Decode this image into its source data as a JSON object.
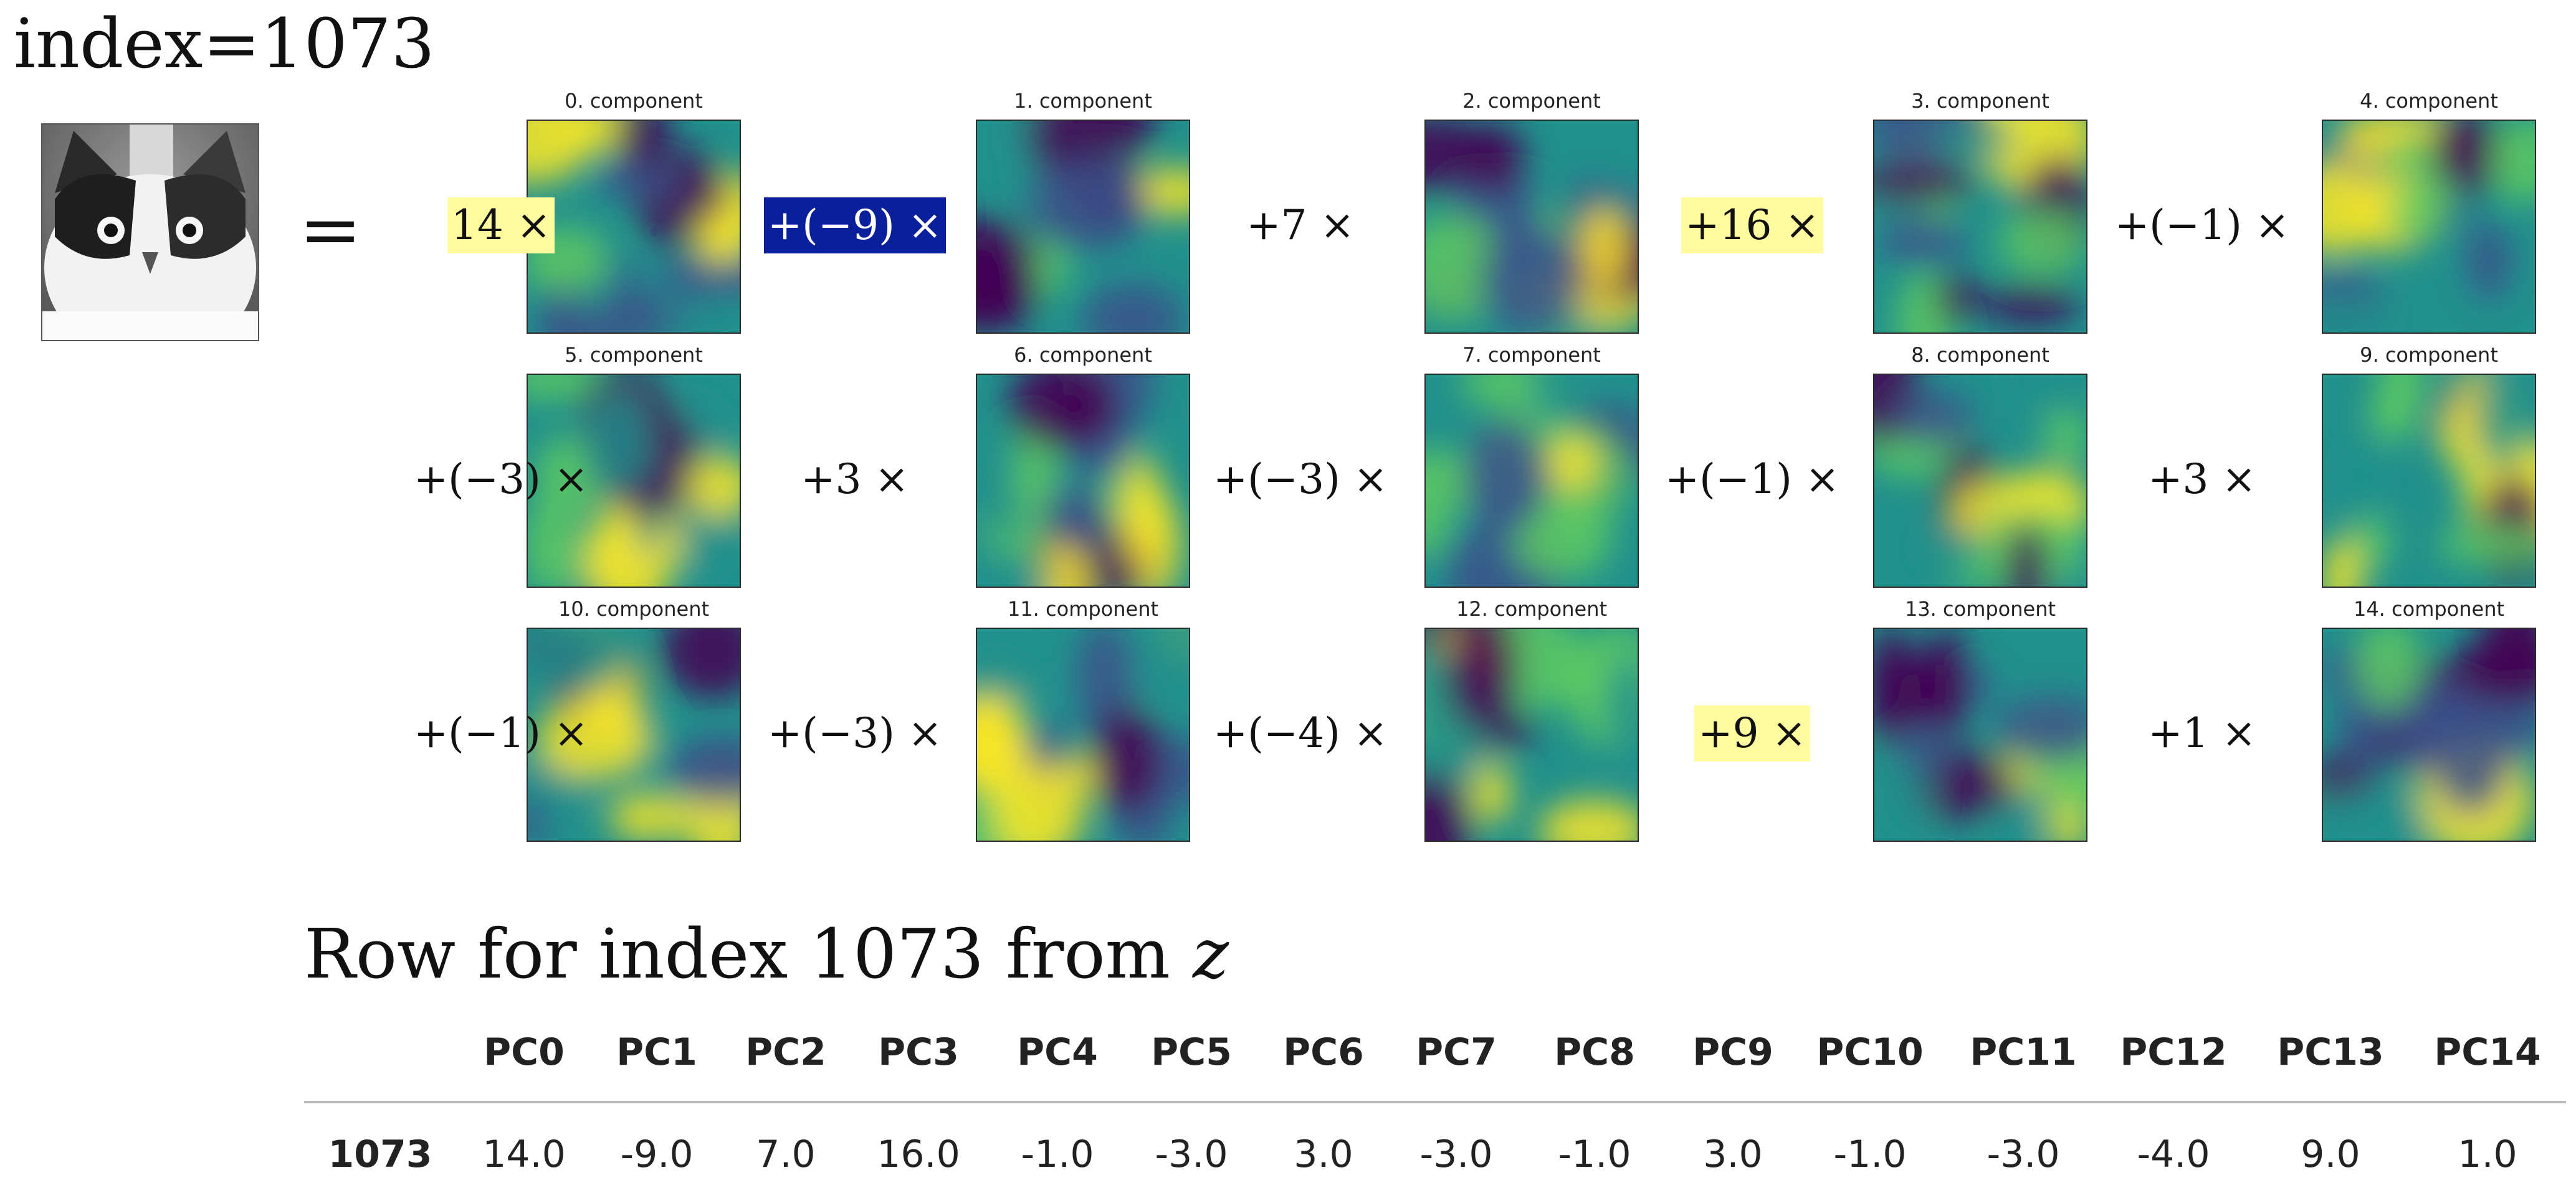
{
  "page_title": "index=1073",
  "equals_sign": "=",
  "cat_photo_icon": "cat-face-photo",
  "components": [
    {
      "title": "0. component",
      "coef": "14 ×",
      "highlight": "yellow"
    },
    {
      "title": "1. component",
      "coef": "+(−9) ×",
      "highlight": "blue"
    },
    {
      "title": "2. component",
      "coef": "+7 ×",
      "highlight": "none"
    },
    {
      "title": "3. component",
      "coef": "+16 ×",
      "highlight": "yellow"
    },
    {
      "title": "4. component",
      "coef": "+(−1) ×",
      "highlight": "none"
    },
    {
      "title": "5. component",
      "coef": "+(−3) ×",
      "highlight": "none"
    },
    {
      "title": "6. component",
      "coef": "+3 ×",
      "highlight": "none"
    },
    {
      "title": "7. component",
      "coef": "+(−3) ×",
      "highlight": "none"
    },
    {
      "title": "8. component",
      "coef": "+(−1) ×",
      "highlight": "none"
    },
    {
      "title": "9. component",
      "coef": "+3 ×",
      "highlight": "none"
    },
    {
      "title": "10. component",
      "coef": "+(−1) ×",
      "highlight": "none"
    },
    {
      "title": "11. component",
      "coef": "+(−3) ×",
      "highlight": "none"
    },
    {
      "title": "12. component",
      "coef": "+(−4) ×",
      "highlight": "none"
    },
    {
      "title": "13. component",
      "coef": "+9 ×",
      "highlight": "yellow"
    },
    {
      "title": "14. component",
      "coef": "+1 ×",
      "highlight": "none"
    }
  ],
  "highlight_colors": {
    "yellow": "#fffb9e",
    "blue": "#0a1f9c"
  },
  "colormap": [
    "#440154",
    "#3b528b",
    "#21918c",
    "#5ec962",
    "#fde725"
  ],
  "section_title": "Row for index 1073 from",
  "section_title_var": "z",
  "table": {
    "columns": [
      "PC0",
      "PC1",
      "PC2",
      "PC3",
      "PC4",
      "PC5",
      "PC6",
      "PC7",
      "PC8",
      "PC9",
      "PC10",
      "PC11",
      "PC12",
      "PC13",
      "PC14"
    ],
    "row_index": "1073",
    "row_values": [
      "14.0",
      "-9.0",
      "7.0",
      "16.0",
      "-1.0",
      "-3.0",
      "3.0",
      "-3.0",
      "-1.0",
      "3.0",
      "-1.0",
      "-3.0",
      "-4.0",
      "9.0",
      "1.0"
    ]
  }
}
